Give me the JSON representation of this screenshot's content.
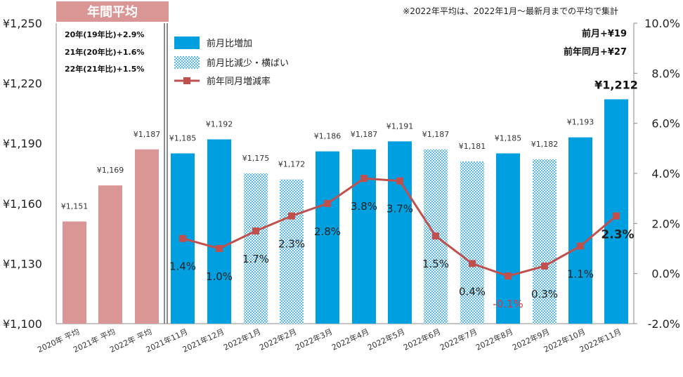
{
  "header_label": "年間平均",
  "note": "※2022年平均は、2022年1月～最新月までの平均で集計",
  "annual_notes": [
    "20年(19年比)+2.9%",
    "21年(20年比)+1.6%",
    "22年(21年比)+1.5%"
  ],
  "summary": {
    "mom": "前月+¥19",
    "yoy": "前年同月+¥27"
  },
  "legend": {
    "increase": "前月比増加",
    "decrease": "前月比減少・横ばい",
    "line": "前年同月増減率"
  },
  "colors": {
    "annual": "#d99694",
    "increase": "#00a0e0",
    "decrease_dot": "#59b9e6",
    "line": "#c0504d",
    "negative_label": "#e0393e"
  },
  "chart_data": {
    "type": "bar+line",
    "categories": [
      "2020年 平均",
      "2021年 平均",
      "2022年 平均",
      "2021年11月",
      "2021年12月",
      "2022年1月",
      "2022年2月",
      "2022年3月",
      "2022年4月",
      "2022年5月",
      "2022年6月",
      "2022年7月",
      "2022年8月",
      "2022年9月",
      "2022年10月",
      "2022年11月"
    ],
    "bar_values": [
      1151,
      1169,
      1187,
      1185,
      1192,
      1175,
      1172,
      1186,
      1187,
      1191,
      1187,
      1181,
      1185,
      1182,
      1193,
      1212
    ],
    "bar_labels": [
      "¥1,151",
      "¥1,169",
      "¥1,187",
      "¥1,185",
      "¥1,192",
      "¥1,175",
      "¥1,172",
      "¥1,186",
      "¥1,187",
      "¥1,191",
      "¥1,187",
      "¥1,181",
      "¥1,185",
      "¥1,182",
      "¥1,193",
      "¥1,212"
    ],
    "bar_kinds": [
      "annual",
      "annual",
      "annual",
      "increase",
      "increase",
      "decrease",
      "decrease",
      "increase",
      "increase",
      "increase",
      "decrease",
      "decrease",
      "increase",
      "decrease",
      "increase",
      "increase"
    ],
    "line_series": {
      "name": "前年同月増減率",
      "values": [
        1.4,
        1.0,
        1.7,
        2.3,
        2.8,
        3.8,
        3.7,
        1.5,
        0.4,
        -0.1,
        0.3,
        1.1,
        2.3
      ],
      "labels": [
        "1.4%",
        "1.0%",
        "1.7%",
        "2.3%",
        "2.8%",
        "3.8%",
        "3.7%",
        "1.5%",
        "0.4%",
        "-0.1%",
        "0.3%",
        "1.1%",
        "2.3%"
      ]
    },
    "y_left": {
      "ylim": [
        1100,
        1250
      ],
      "ticks": [
        "¥1,100",
        "¥1,130",
        "¥1,160",
        "¥1,190",
        "¥1,220",
        "¥1,250"
      ]
    },
    "y_right": {
      "ylim": [
        -2.0,
        10.0
      ],
      "ticks": [
        "-2.0%",
        "0.0%",
        "2.0%",
        "4.0%",
        "6.0%",
        "8.0%",
        "10.0%"
      ]
    }
  }
}
